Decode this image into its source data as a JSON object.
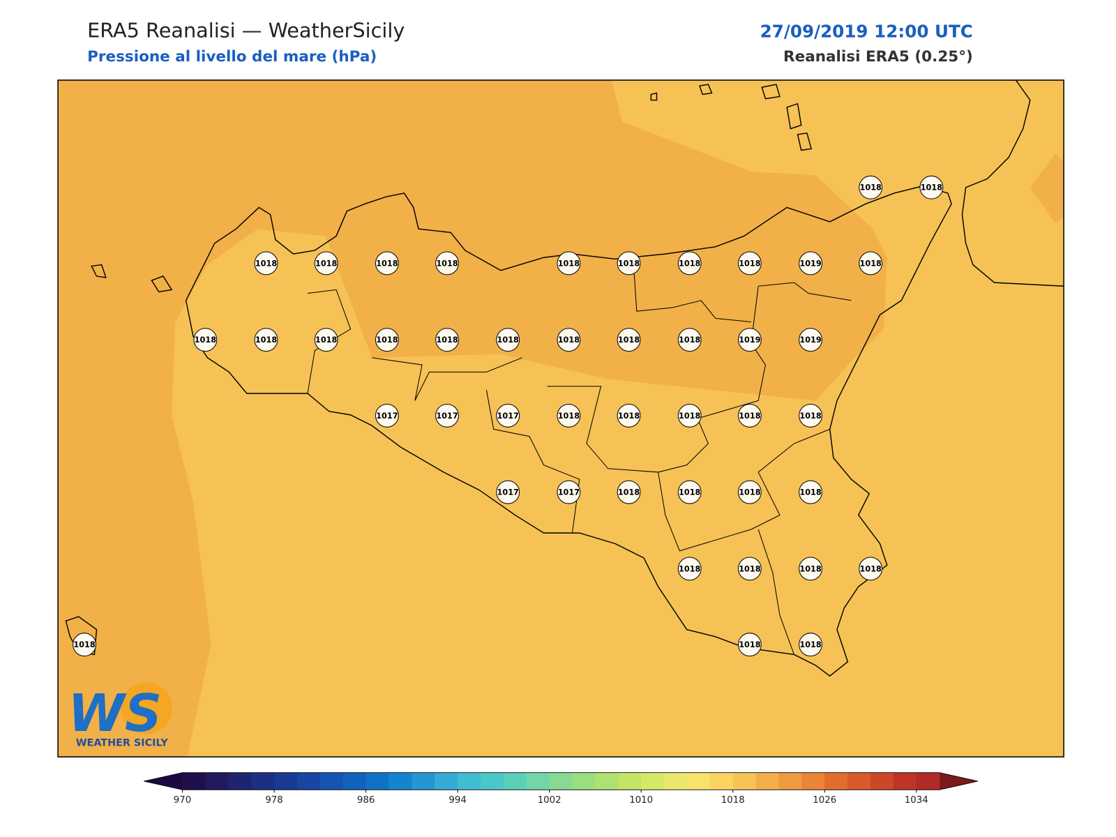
{
  "header": {
    "title": "ERA5 Reanalisi — WeatherSicily",
    "subtitle": "Pressione al livello del mare (hPa)",
    "date": "27/09/2019 12:00 UTC",
    "source": "Reanalisi ERA5 (0.25°)"
  },
  "map": {
    "stations": [
      1018,
      1018,
      1018,
      1018,
      1018,
      1018,
      1018,
      1018,
      1018,
      1018,
      1019,
      1018,
      1018,
      1018,
      1018,
      1018,
      1018,
      1018,
      1018,
      1018,
      1018,
      1019,
      1019,
      1017,
      1017,
      1017,
      1018,
      1018,
      1018,
      1018,
      1018,
      1017,
      1017,
      1018,
      1018,
      1018,
      1018,
      1018,
      1018,
      1018,
      1018,
      1018,
      1018,
      1018
    ]
  },
  "logo": {
    "text": "WS",
    "tagline": "WEATHER SICILY"
  },
  "colorbar": {
    "lim": [
      970,
      1036
    ],
    "ticks": [
      970,
      978,
      986,
      994,
      1002,
      1010,
      1018,
      1026,
      1034
    ],
    "under_color": "#1a0a40",
    "over_color": "#7a1a1a",
    "colors": [
      "#1f0f4d",
      "#221a5e",
      "#1f2470",
      "#1c2f82",
      "#193a94",
      "#1746a3",
      "#1554b0",
      "#1262bd",
      "#0f72c6",
      "#1584ce",
      "#2696d2",
      "#35aad4",
      "#3fbdd2",
      "#4ac7c8",
      "#5ccfbb",
      "#72d6a8",
      "#86da93",
      "#9ade80",
      "#afe170",
      "#c3e465",
      "#d6e86a",
      "#e8e86c",
      "#f8e26a",
      "#fad45e",
      "#f7c355",
      "#f2ae4a",
      "#ef9a40",
      "#ea8436",
      "#e26c2e",
      "#d85a2a",
      "#cc4628",
      "#c03427",
      "#b02a27"
    ]
  }
}
